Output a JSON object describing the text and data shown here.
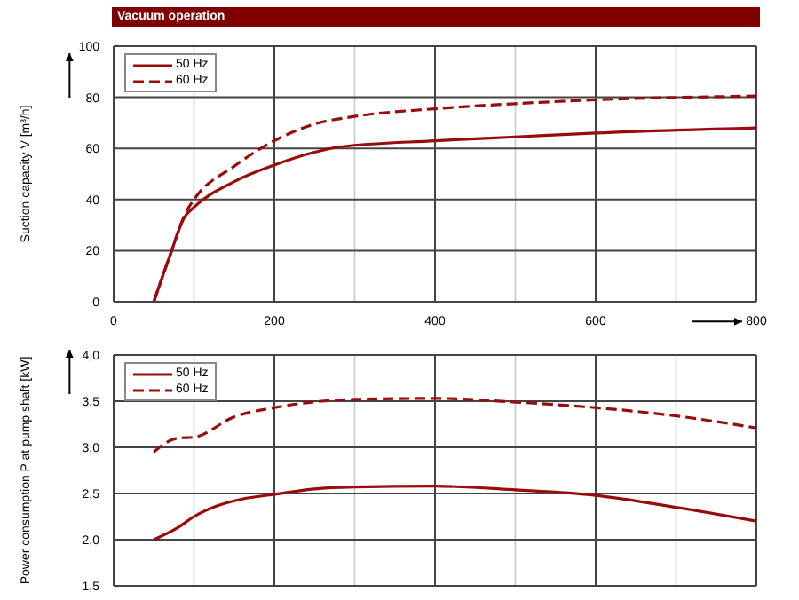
{
  "chart_data": [
    {
      "type": "line",
      "title": "Vacuum operation",
      "ylabel": "Suction capacity V [m³/h]",
      "xlim": [
        0,
        800
      ],
      "xticks": [
        0,
        {
          "value": 100,
          "label": null
        },
        200,
        {
          "value": 300,
          "label": null
        },
        400,
        {
          "value": 500,
          "label": null
        },
        600,
        {
          "value": 700,
          "label": null
        },
        800
      ],
      "ylim": [
        0,
        100
      ],
      "yticks": [
        0,
        20,
        40,
        60,
        80,
        100
      ],
      "grid": true,
      "legend": "top left",
      "marker": "none",
      "series": [
        {
          "name": "50 Hz",
          "color": "#9a0c0c",
          "line_style": "solid",
          "x": [
            50,
            70,
            88,
            100,
            150,
            200,
            250,
            280,
            400,
            500,
            600,
            800
          ],
          "values": [
            0,
            18,
            33,
            37,
            47,
            53.5,
            58.5,
            60.5,
            63,
            64.5,
            66,
            68
          ]
        },
        {
          "name": "60 Hz",
          "color": "#9a0c0c",
          "line_style": "dashed",
          "x": [
            50,
            70,
            90,
            100,
            150,
            200,
            250,
            300,
            400,
            500,
            600,
            800
          ],
          "values": [
            0,
            18,
            35,
            40,
            53,
            63,
            69.5,
            72.5,
            75.5,
            77.5,
            79,
            80.5
          ]
        }
      ]
    },
    {
      "type": "line",
      "ylabel": "Power consumption P at pump shaft [kW]",
      "xlim": [
        0,
        800
      ],
      "xticks": [
        0,
        {
          "value": 100,
          "label": null
        },
        200,
        {
          "value": 300,
          "label": null
        },
        400,
        {
          "value": 500,
          "label": null
        },
        600,
        {
          "value": 700,
          "label": null
        },
        800
      ],
      "ylim": [
        1.5,
        4.0
      ],
      "yticks": [
        {
          "value": 1.5,
          "label": "1,5"
        },
        {
          "value": 2.0,
          "label": "2,0"
        },
        {
          "value": 2.5,
          "label": "2,5"
        },
        {
          "value": 3.0,
          "label": "3,0"
        },
        {
          "value": 3.5,
          "label": "3,5"
        },
        {
          "value": 4.0,
          "label": "4,0"
        }
      ],
      "tick_labels": "y",
      "grid": true,
      "legend": "top left",
      "marker": "none",
      "series": [
        {
          "name": "50 Hz",
          "color": "#9a0c0c",
          "line_style": "solid",
          "x": [
            50,
            80,
            100,
            130,
            160,
            200,
            250,
            300,
            400,
            500,
            600,
            700,
            800
          ],
          "values": [
            2.0,
            2.13,
            2.25,
            2.37,
            2.44,
            2.49,
            2.55,
            2.57,
            2.58,
            2.54,
            2.48,
            2.35,
            2.2
          ]
        },
        {
          "name": "60 Hz",
          "color": "#9a0c0c",
          "line_style": "dashed",
          "x": [
            50,
            80,
            100,
            150,
            200,
            300,
            400,
            500,
            600,
            700,
            800
          ],
          "values": [
            2.95,
            3.1,
            3.11,
            3.33,
            3.43,
            3.52,
            3.53,
            3.49,
            3.43,
            3.34,
            3.21
          ]
        }
      ]
    }
  ]
}
